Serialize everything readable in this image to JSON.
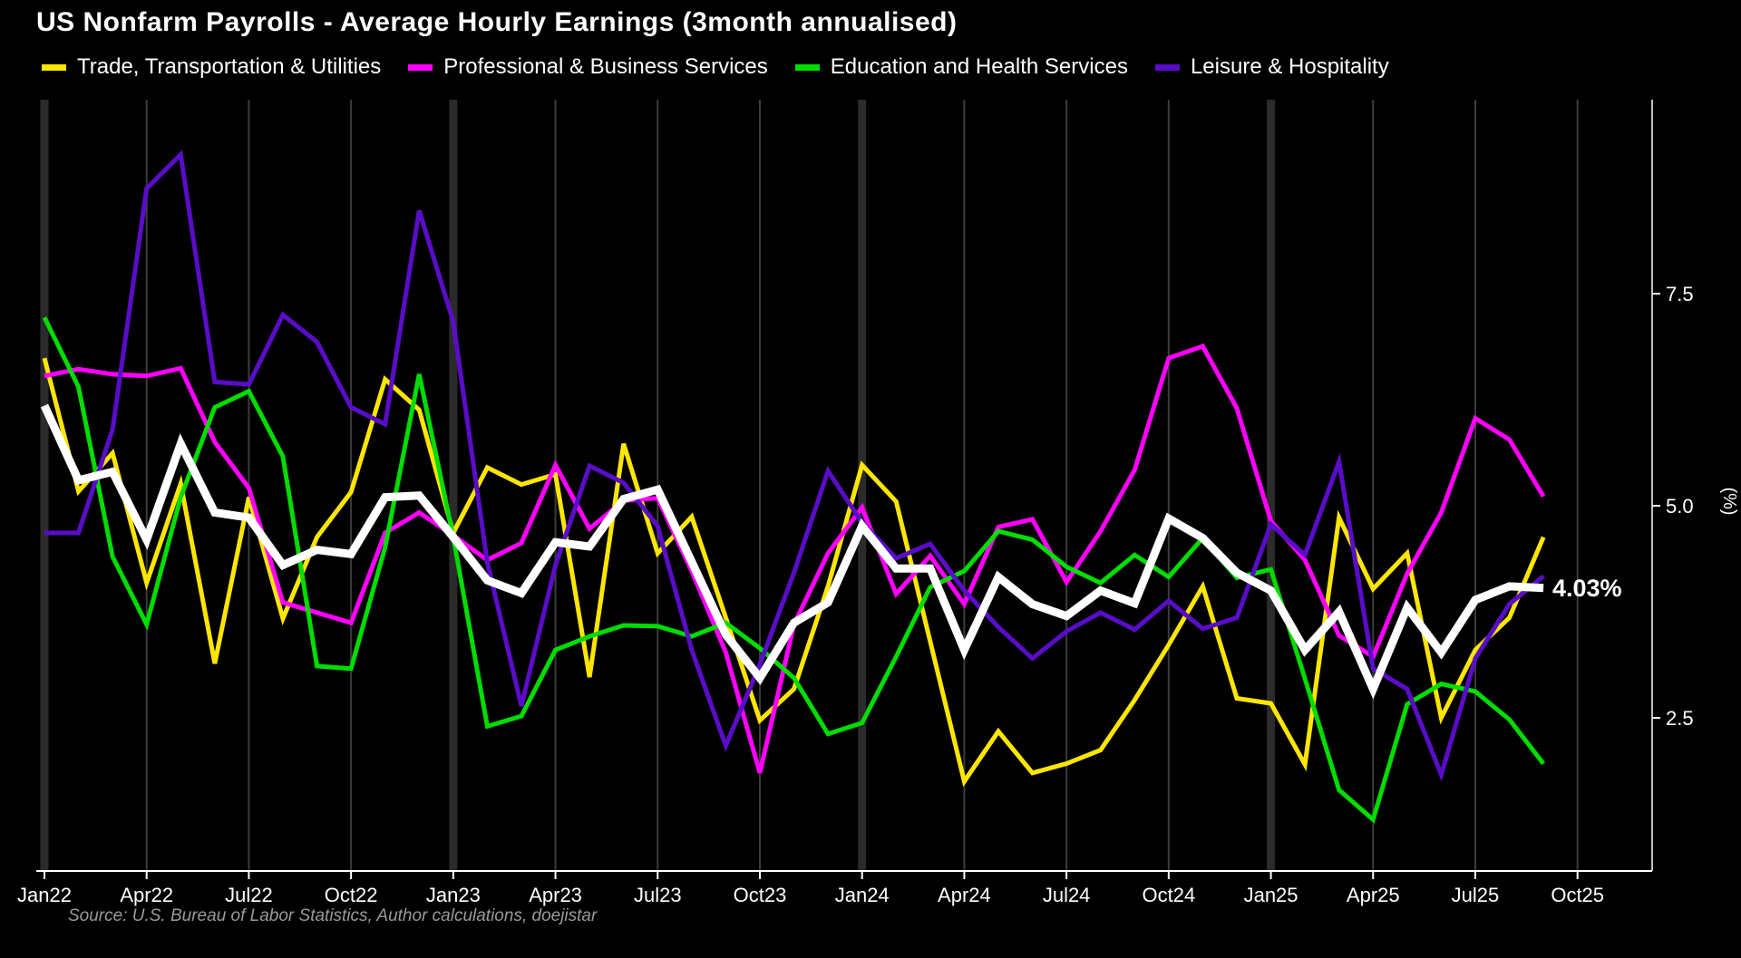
{
  "title": "US Nonfarm Payrolls - Average Hourly Earnings (3month annualised)",
  "source": "Source: U.S. Bureau of Labor Statistics, Author calculations, doejistar",
  "annotation": {
    "text": "4.03%",
    "value": 4.03
  },
  "legend": [
    {
      "label": "Trade, Transportation & Utilities",
      "color": "#ffe600"
    },
    {
      "label": "Professional & Business Services",
      "color": "#ff00ff"
    },
    {
      "label": "Education and Health Services",
      "color": "#00dc00"
    },
    {
      "label": "Leisure & Hospitality",
      "color": "#5a0dc8"
    }
  ],
  "y_axis": {
    "tick_labels": [
      "2.5",
      "5.0",
      "7.5"
    ],
    "tick_values": [
      2.5,
      5.0,
      7.5
    ],
    "unit_label": "(%)"
  },
  "x_axis": {
    "tick_labels": [
      "Jan22",
      "Apr22",
      "Jul22",
      "Oct22",
      "Jan23",
      "Apr23",
      "Jul23",
      "Oct23",
      "Jan24",
      "Apr24",
      "Jul24",
      "Oct24",
      "Jan25",
      "Apr25",
      "Jul25",
      "Oct25"
    ]
  },
  "colors": {
    "background": "#000000",
    "grid_thin": "#3c3c3c",
    "grid_thick": "#2b2b2b",
    "axis": "#ffffff",
    "source_text": "#9a9a9a"
  },
  "chart_data": {
    "type": "line",
    "title": "US Nonfarm Payrolls - Average Hourly Earnings (3month annualised)",
    "ylabel": "(%)",
    "ylim": [
      0.7,
      9.8
    ],
    "grid": "vertical-quarterly, thick at January",
    "legend_position": "top",
    "x_labels": [
      "Jan22",
      "Feb22",
      "Mar22",
      "Apr22",
      "May22",
      "Jun22",
      "Jul22",
      "Aug22",
      "Sep22",
      "Oct22",
      "Nov22",
      "Dec22",
      "Jan23",
      "Feb23",
      "Mar23",
      "Apr23",
      "May23",
      "Jun23",
      "Jul23",
      "Aug23",
      "Sep23",
      "Oct23",
      "Nov23",
      "Dec23",
      "Jan24",
      "Feb24",
      "Mar24",
      "Apr24",
      "May24",
      "Jun24",
      "Jul24",
      "Aug24",
      "Sep24",
      "Oct24",
      "Nov24",
      "Dec24",
      "Jan25",
      "Feb25",
      "Mar25",
      "Apr25",
      "May25",
      "Jun25",
      "Jul25",
      "Aug25",
      "Sep25"
    ],
    "series": [
      {
        "name": "Trade, Transportation & Utilities",
        "color": "#ffe600",
        "width": 5,
        "values": [
          6.74,
          5.17,
          5.62,
          4.09,
          5.26,
          3.14,
          5.1,
          3.67,
          4.63,
          5.16,
          6.49,
          6.13,
          4.68,
          5.45,
          5.25,
          5.37,
          2.98,
          5.73,
          4.44,
          4.87,
          3.68,
          2.47,
          2.84,
          4.05,
          5.48,
          5.05,
          3.4,
          1.75,
          2.34,
          1.85,
          1.96,
          2.12,
          2.71,
          3.36,
          4.05,
          2.73,
          2.67,
          1.95,
          4.86,
          4.02,
          4.44,
          2.5,
          3.3,
          3.68,
          4.63
        ]
      },
      {
        "name": "Professional & Business Services",
        "color": "#ff00ff",
        "width": 5,
        "values": [
          6.53,
          6.61,
          6.55,
          6.53,
          6.62,
          5.75,
          5.21,
          3.86,
          3.74,
          3.62,
          4.68,
          4.92,
          4.65,
          4.36,
          4.56,
          5.48,
          4.73,
          5.06,
          5.09,
          4.23,
          3.27,
          1.85,
          3.6,
          4.44,
          4.98,
          3.96,
          4.41,
          3.84,
          4.75,
          4.84,
          4.1,
          4.7,
          5.42,
          6.74,
          6.88,
          6.15,
          4.82,
          4.36,
          3.47,
          3.22,
          4.2,
          4.92,
          6.03,
          5.78,
          5.11
        ]
      },
      {
        "name": "Education and Health Services",
        "color": "#00dc00",
        "width": 5,
        "values": [
          7.22,
          6.4,
          4.4,
          3.6,
          5.1,
          6.16,
          6.35,
          5.58,
          3.11,
          3.08,
          4.51,
          6.55,
          4.63,
          2.4,
          2.52,
          3.3,
          3.46,
          3.59,
          3.58,
          3.46,
          3.62,
          3.32,
          2.97,
          2.31,
          2.44,
          3.22,
          4.04,
          4.23,
          4.7,
          4.6,
          4.28,
          4.09,
          4.42,
          4.16,
          4.62,
          4.15,
          4.25,
          2.96,
          1.65,
          1.3,
          2.66,
          2.9,
          2.81,
          2.48,
          1.96
        ]
      },
      {
        "name": "Leisure & Hospitality",
        "color": "#5a0dc8",
        "width": 5,
        "values": [
          4.68,
          4.68,
          5.9,
          8.74,
          9.14,
          6.46,
          6.43,
          7.25,
          6.93,
          6.16,
          5.96,
          8.48,
          7.17,
          4.33,
          2.64,
          4.3,
          5.47,
          5.27,
          4.76,
          3.3,
          2.17,
          3.13,
          4.21,
          5.41,
          4.8,
          4.38,
          4.55,
          4.0,
          3.57,
          3.2,
          3.52,
          3.74,
          3.54,
          3.88,
          3.55,
          3.68,
          4.78,
          4.42,
          5.52,
          3.08,
          2.84,
          1.83,
          3.2,
          3.84,
          4.17
        ]
      },
      {
        "name": "Overall (white line)",
        "color": "#ffffff",
        "width": 9,
        "in_legend": false,
        "end_label": "4.03%",
        "values": [
          6.18,
          5.3,
          5.4,
          4.6,
          5.73,
          4.92,
          4.86,
          4.3,
          4.48,
          4.43,
          5.1,
          5.12,
          4.63,
          4.12,
          3.97,
          4.57,
          4.52,
          5.08,
          5.19,
          4.34,
          3.48,
          2.97,
          3.62,
          3.86,
          4.76,
          4.26,
          4.26,
          3.3,
          4.16,
          3.84,
          3.7,
          4.0,
          3.85,
          4.85,
          4.62,
          4.21,
          4.0,
          3.3,
          3.75,
          2.84,
          3.8,
          3.27,
          3.89,
          4.05,
          4.03
        ]
      }
    ]
  }
}
